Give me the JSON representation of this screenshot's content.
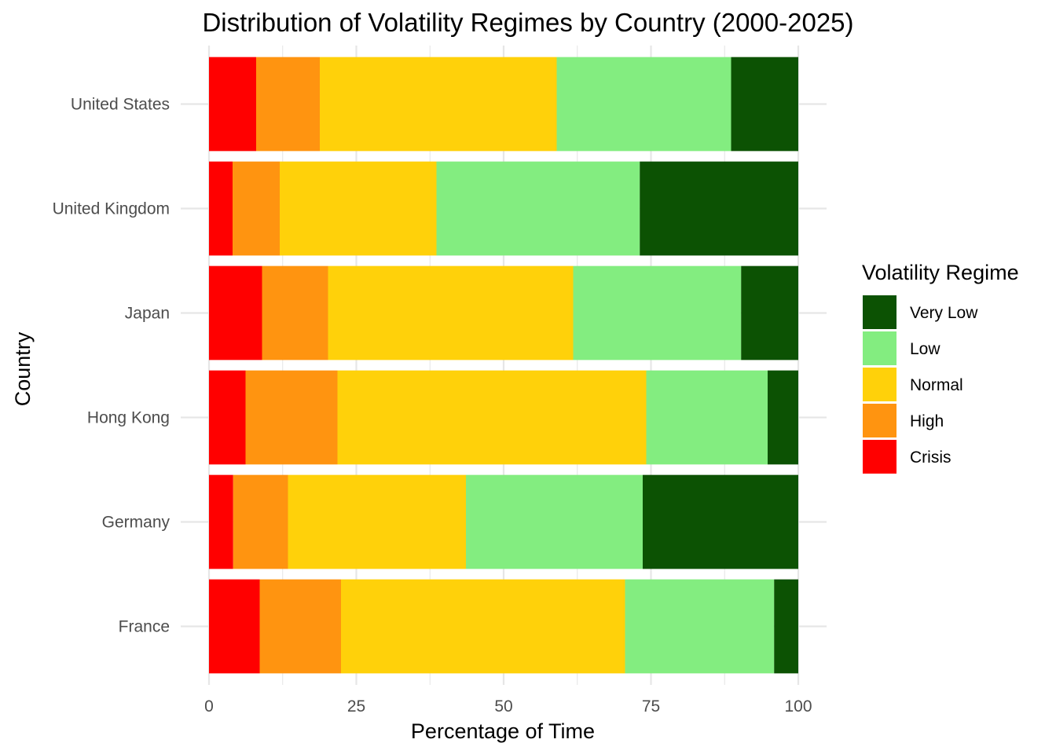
{
  "chart_data": {
    "type": "bar",
    "orientation": "horizontal",
    "stacked": true,
    "title": "Distribution of Volatility Regimes by Country (2000-2025)",
    "xlabel": "Percentage of Time",
    "ylabel": "Country",
    "xlim": [
      0,
      100
    ],
    "x_ticks": [
      "0",
      "25",
      "50",
      "75",
      "100"
    ],
    "categories": [
      "United States",
      "United Kingdom",
      "Japan",
      "Hong Kong",
      "Germany",
      "France"
    ],
    "legend": {
      "title": "Volatility Regime",
      "position": "right",
      "entries": [
        "Very Low",
        "Low",
        "Normal",
        "High",
        "Crisis"
      ]
    },
    "series": [
      {
        "name": "Crisis",
        "color": "#ff0000",
        "values": [
          8.0,
          4.0,
          9.0,
          6.2,
          4.1,
          8.6
        ]
      },
      {
        "name": "High",
        "color": "#ff9410",
        "values": [
          10.8,
          8.0,
          11.2,
          15.6,
          9.3,
          13.8
        ]
      },
      {
        "name": "Normal",
        "color": "#ffd10a",
        "values": [
          40.2,
          26.6,
          41.6,
          52.4,
          30.2,
          48.2
        ]
      },
      {
        "name": "Low",
        "color": "#83ed80",
        "values": [
          29.6,
          34.5,
          28.5,
          20.6,
          30.0,
          25.3
        ]
      },
      {
        "name": "Very Low",
        "color": "#0c5203",
        "values": [
          11.4,
          26.9,
          9.7,
          5.2,
          26.4,
          4.1
        ]
      }
    ],
    "grid": true
  }
}
